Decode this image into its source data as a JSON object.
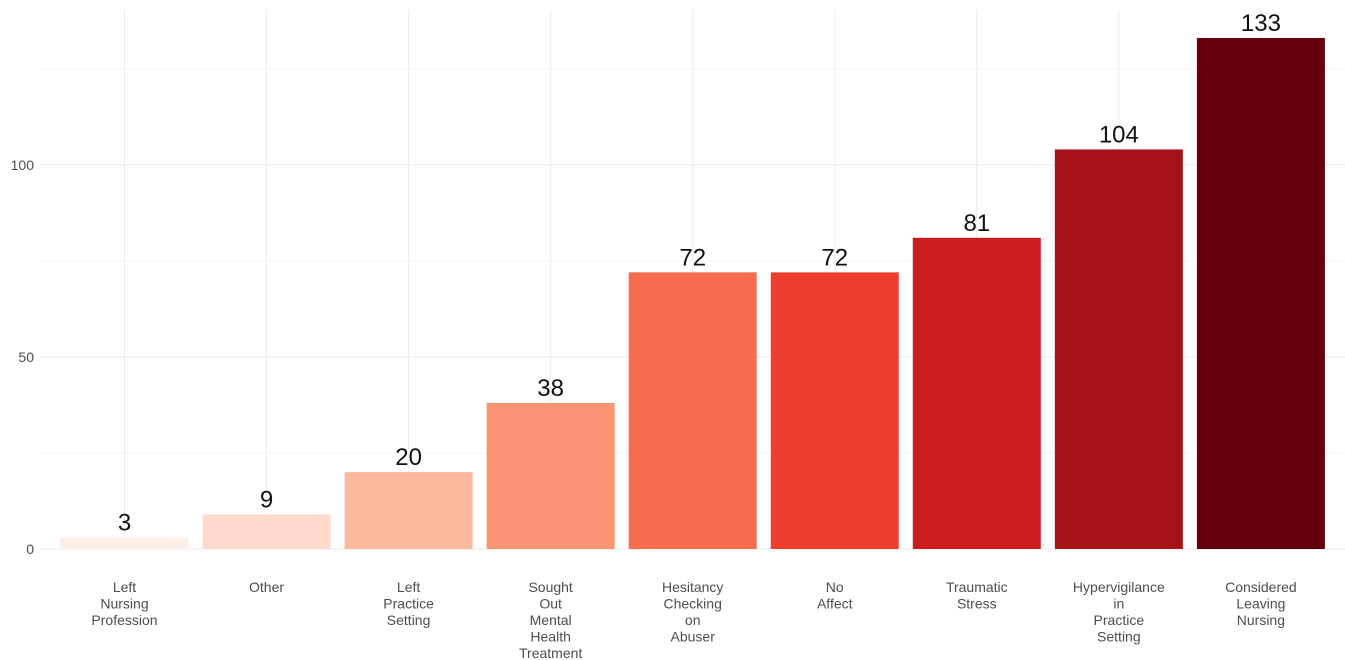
{
  "chart_data": {
    "type": "bar",
    "categories": [
      [
        "Left",
        "Nursing",
        "Profession"
      ],
      [
        "Other"
      ],
      [
        "Left",
        "Practice",
        "Setting"
      ],
      [
        "Sought",
        "Out",
        "Mental",
        "Health",
        "Treatment"
      ],
      [
        "Hesitancy",
        "Checking",
        "on",
        "Abuser"
      ],
      [
        "No",
        "Affect"
      ],
      [
        "Traumatic",
        "Stress"
      ],
      [
        "Hypervigilance",
        "in",
        "Practice",
        "Setting"
      ],
      [
        "Considered",
        "Leaving",
        "Nursing"
      ]
    ],
    "values": [
      3,
      9,
      20,
      38,
      72,
      72,
      81,
      104,
      133
    ],
    "data_labels": [
      "3",
      "9",
      "20",
      "38",
      "72",
      "72",
      "81",
      "104",
      "133"
    ],
    "colors": [
      "#fdeee6",
      "#fddacc",
      "#fcb99e",
      "#fb9473",
      "#f76b4f",
      "#ed3e2e",
      "#cc1c1e",
      "#a51218",
      "#67000d"
    ],
    "title": "",
    "xlabel": "",
    "ylabel": "",
    "ylim": [
      0,
      133
    ],
    "yticks": [
      0,
      50,
      100
    ],
    "ytick_labels": [
      "0",
      "50",
      "100"
    ],
    "grid": true,
    "legend": "none"
  }
}
